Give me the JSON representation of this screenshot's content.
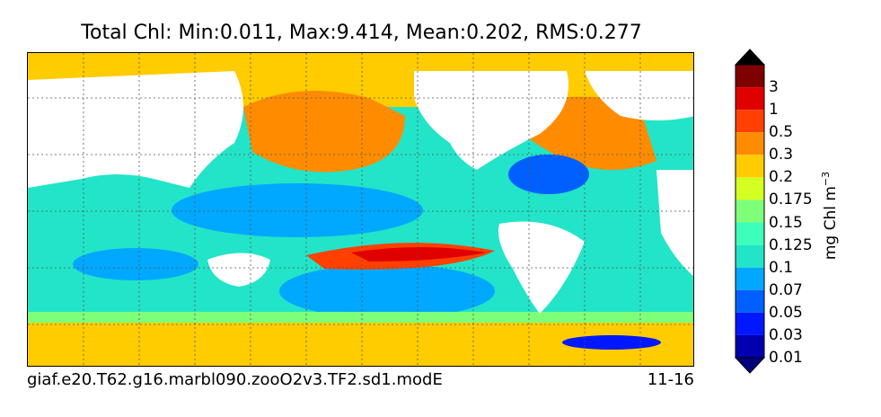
{
  "title": "Total Chl: Min:0.011, Max:9.414, Mean:0.202, RMS:0.277",
  "footer": {
    "case_name": "giaf.e20.T62.g16.marbl090.zooO2v3.TF2.sd1.modE",
    "period": "11-16"
  },
  "colorbar": {
    "units": "mg Chl m",
    "units_superscript": "−3",
    "levels": [
      {
        "label": "3",
        "color": "#7f0000"
      },
      {
        "label": "1",
        "color": "#e00000"
      },
      {
        "label": "0.5",
        "color": "#ff4000"
      },
      {
        "label": "0.3",
        "color": "#ff8c00"
      },
      {
        "label": "0.2",
        "color": "#ffcc00"
      },
      {
        "label": "0.175",
        "color": "#d4ff22"
      },
      {
        "label": "0.15",
        "color": "#7dff7a"
      },
      {
        "label": "0.125",
        "color": "#3dffbb"
      },
      {
        "label": "0.1",
        "color": "#22e4c8"
      },
      {
        "label": "0.07",
        "color": "#00a8ff"
      },
      {
        "label": "0.05",
        "color": "#0060ff"
      },
      {
        "label": "0.03",
        "color": "#0018ff"
      },
      {
        "label": "0.01",
        "color": "#0000b0"
      }
    ],
    "below_color": "#00007f",
    "above_color": "#000000"
  },
  "map": {
    "land_color": "#ffffff",
    "gridlines": "dotted"
  }
}
